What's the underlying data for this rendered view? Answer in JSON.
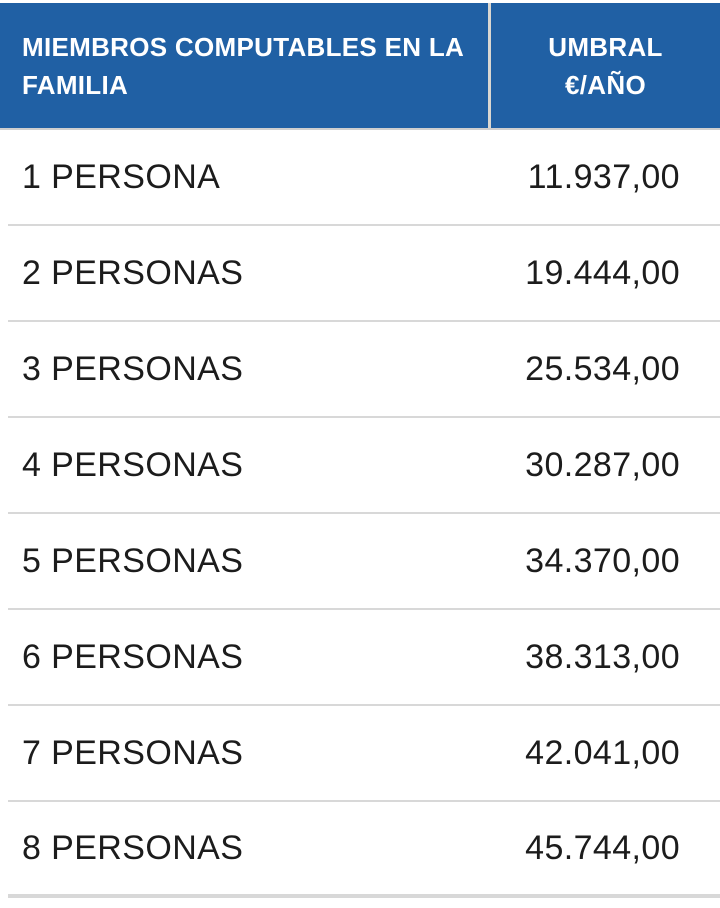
{
  "table": {
    "header": {
      "members_label": "MIEMBROS COMPUTABLES EN LA FAMILIA",
      "umbral_line1": "UMBRAL",
      "umbral_line2": "€/AÑO"
    },
    "rows": [
      {
        "label": "1 PERSONA",
        "value": "11.937,00"
      },
      {
        "label": "2 PERSONAS",
        "value": "19.444,00"
      },
      {
        "label": "3 PERSONAS",
        "value": "25.534,00"
      },
      {
        "label": "4 PERSONAS",
        "value": "30.287,00"
      },
      {
        "label": "5 PERSONAS",
        "value": "34.370,00"
      },
      {
        "label": "6 PERSONAS",
        "value": "38.313,00"
      },
      {
        "label": "7 PERSONAS",
        "value": "42.041,00"
      },
      {
        "label": "8 PERSONAS",
        "value": "45.744,00"
      }
    ]
  },
  "colors": {
    "header_background": "#2060A4",
    "header_text": "#FFFFFF",
    "body_text": "#1C1C1C",
    "row_divider": "#D8D8D8",
    "header_divider": "#DAD7D1"
  }
}
